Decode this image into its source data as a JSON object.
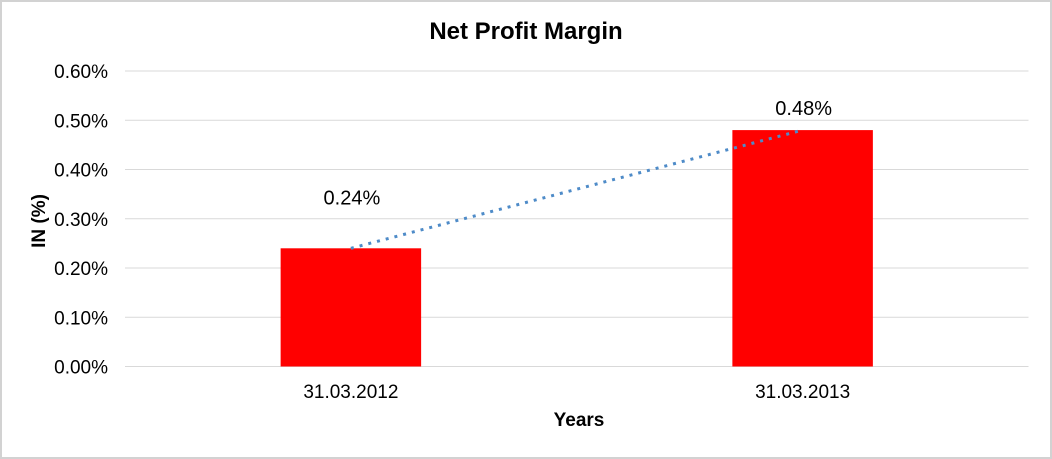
{
  "chart_data": {
    "type": "bar",
    "title": "Net Profit Margin",
    "categories": [
      "31.03.2012",
      "31.03.2013"
    ],
    "values": [
      0.24,
      0.48
    ],
    "data_labels": [
      "0.24%",
      "0.48%"
    ],
    "xlabel": "Years",
    "ylabel": "IN (%)",
    "ylim": [
      0.0,
      0.6
    ],
    "ytick_step": 0.1,
    "ytick_labels": [
      "0.00%",
      "0.10%",
      "0.20%",
      "0.30%",
      "0.40%",
      "0.50%",
      "0.60%"
    ],
    "grid": true,
    "legend": "none",
    "trendline": {
      "type": "linear",
      "style": "dotted"
    },
    "colors": {
      "bar": "#ff0000",
      "trendline": "#4e8bc8",
      "gridline": "#d9d9d9",
      "frame": "#d2d2d2",
      "text": "#000000"
    }
  }
}
